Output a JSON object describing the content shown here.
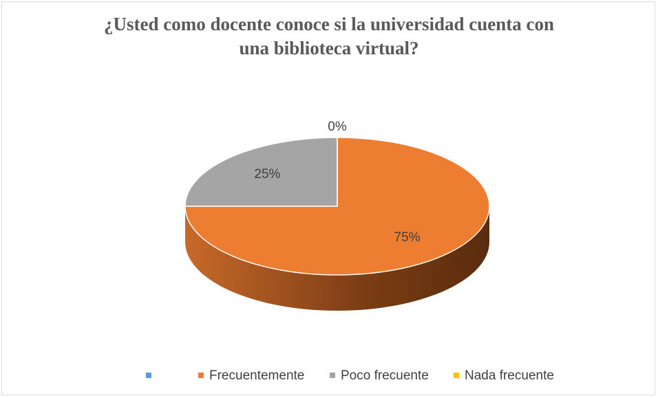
{
  "chart_data": {
    "type": "pie3d",
    "title": "¿Usted como docente conoce si la universidad cuenta con una biblioteca virtual?",
    "categories": [
      null,
      "Frecuentemente",
      "Poco frecuente",
      "Nada frecuente"
    ],
    "values": [
      null,
      75,
      25,
      0
    ],
    "value_labels": [
      null,
      "75%",
      "25%",
      "0%"
    ],
    "colors": [
      "#5b9bd5",
      "#ed7d31",
      "#a5a5a5",
      "#ffc000"
    ],
    "legend": "bottom"
  }
}
